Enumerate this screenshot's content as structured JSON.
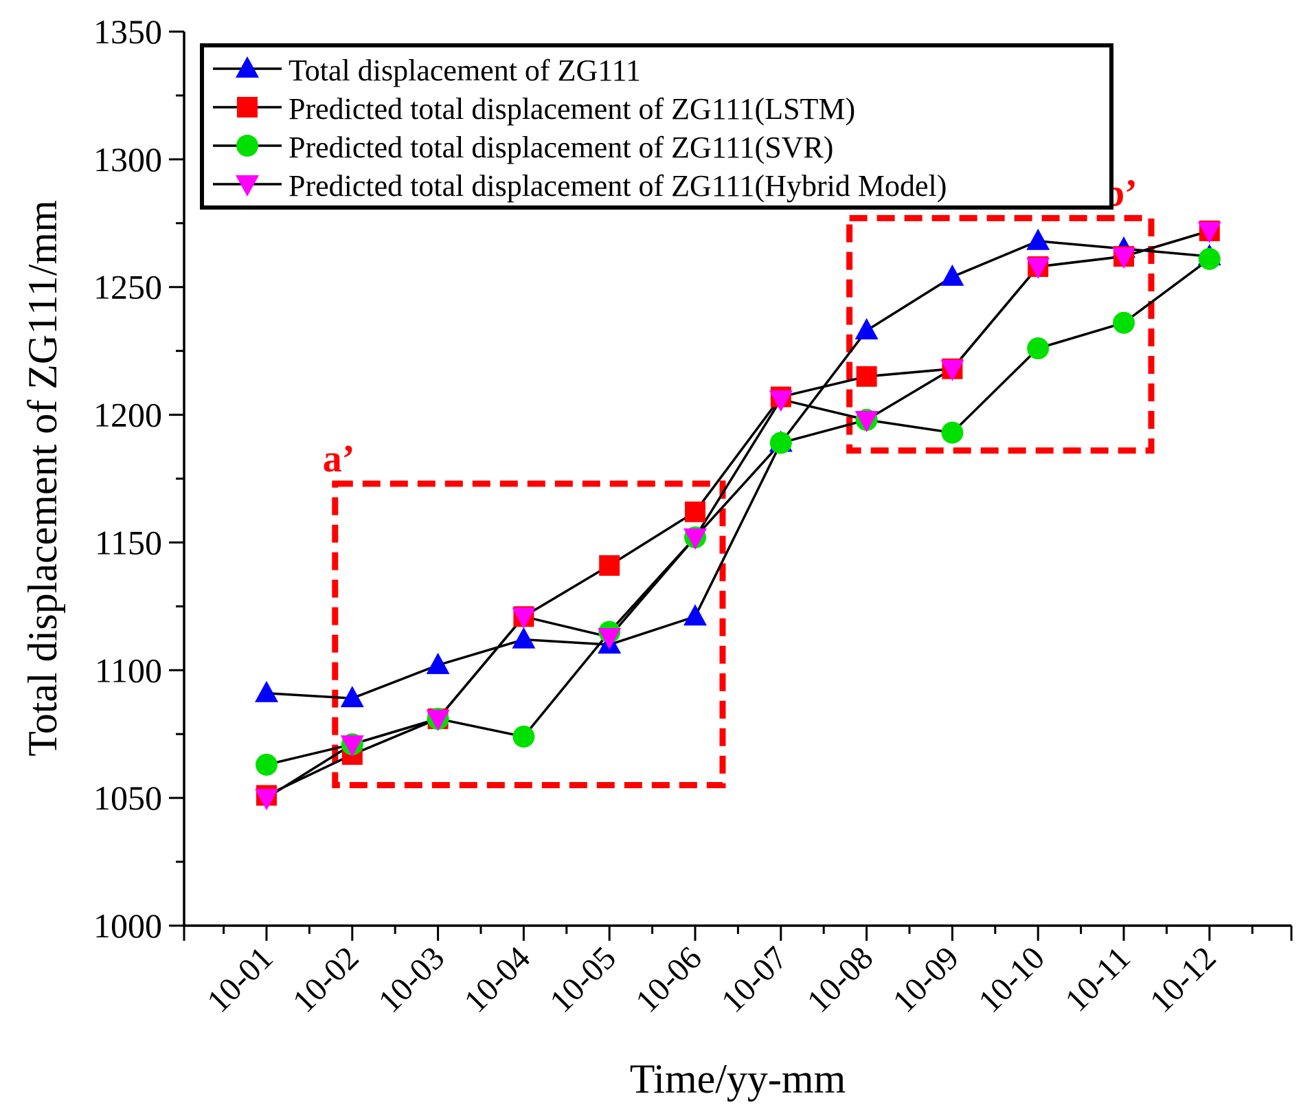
{
  "chart_data": {
    "type": "line",
    "title": "",
    "xlabel": "Time/yy-mm",
    "ylabel": "Total displacement of ZG111/mm",
    "ylim": [
      1000,
      1350
    ],
    "yticks": [
      1000,
      1050,
      1100,
      1150,
      1200,
      1250,
      1300,
      1350
    ],
    "ytick_labels": [
      "1000",
      "1050",
      "1100",
      "1150",
      "1200",
      "1250",
      "1300",
      "1350"
    ],
    "categories": [
      "10-01",
      "10-02",
      "10-03",
      "10-04",
      "10-05",
      "10-06",
      "10-07",
      "10-08",
      "10-09",
      "10-10",
      "10-11",
      "10-12"
    ],
    "legend_position": "top",
    "series": [
      {
        "name": "Total displacement of ZG111",
        "marker": "triangle-up",
        "color": "#0000ff",
        "values": [
          1091,
          1089,
          1102,
          1112,
          1110,
          1121,
          1189,
          1233,
          1254,
          1268,
          1265,
          1262
        ]
      },
      {
        "name": "Predicted total displacement of ZG111(LSTM)",
        "marker": "square",
        "color": "#ff0000",
        "values": [
          1051,
          1067,
          1081,
          1121,
          1141,
          1162,
          1207,
          1215,
          1218,
          1258,
          1262,
          1272
        ]
      },
      {
        "name": "Predicted total displacement of ZG111(SVR)",
        "marker": "circle",
        "color": "#00e000",
        "values": [
          1063,
          1071,
          1081,
          1074,
          1115,
          1152,
          1189,
          1198,
          1193,
          1226,
          1236,
          1261
        ]
      },
      {
        "name": "Predicted total displacement of ZG111(Hybrid Model)",
        "marker": "triangle-down",
        "color": "#ff00ff",
        "values": [
          1050,
          1071,
          1081,
          1121,
          1113,
          1152,
          1206,
          1198,
          1218,
          1258,
          1262,
          1272
        ]
      }
    ],
    "annotations": [
      {
        "label": "a’",
        "color": "#ff0000",
        "x_from": "10-02",
        "x_to": "10-06",
        "y_from": 1055,
        "y_to": 1173
      },
      {
        "label": "b’",
        "color": "#ff0000",
        "x_from": "10-08",
        "x_to": "10-11",
        "y_from": 1186,
        "y_to": 1277
      }
    ]
  }
}
